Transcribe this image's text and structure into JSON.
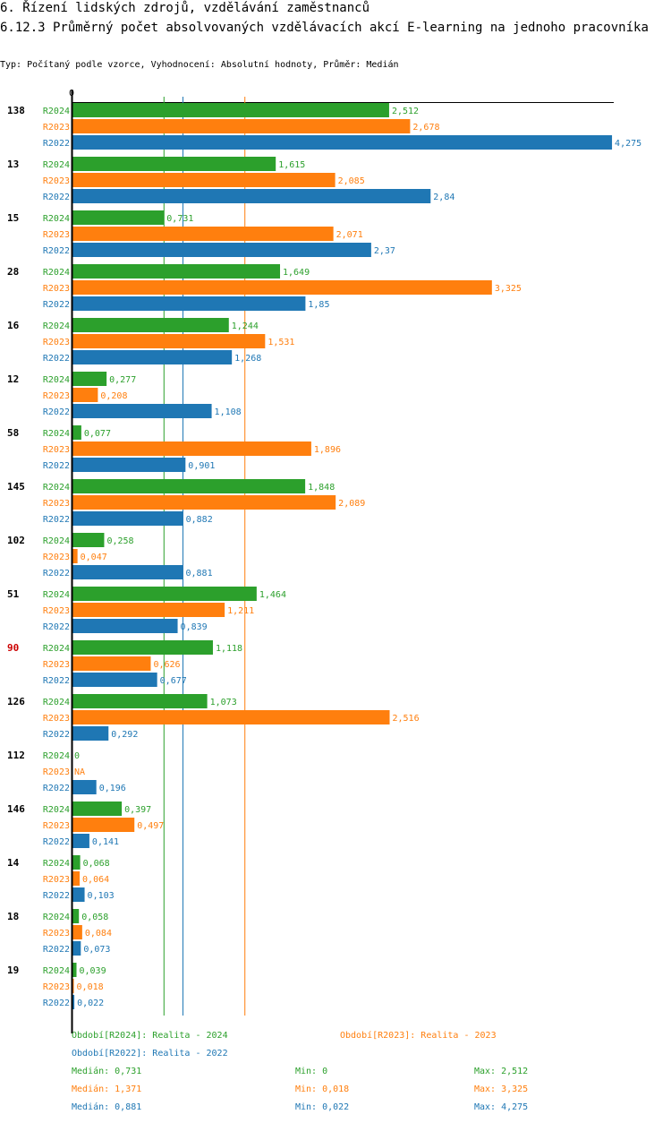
{
  "header": {
    "title": "6. Řízení lidských zdrojů, vzdělávání zaměstnanců",
    "subtitle": "6.12.3 Průměrný počet absolvovaných vzdělávacích akcí E-learning na jednoho pracovníka",
    "info": "Typ: Počítaný podle vzorce, Vyhodnocení: Absolutní hodnoty, Průměr: Medián"
  },
  "colors": {
    "R2024": "#2ca02c",
    "R2023": "#ff7f0e",
    "R2022": "#1f77b4",
    "highlight": "#cc0000",
    "axis": "#000000"
  },
  "chart_data": {
    "type": "bar",
    "orientation": "horizontal",
    "axis_zero_label": "0",
    "xlim": [
      0,
      4.275
    ],
    "series_names": [
      "R2024",
      "R2023",
      "R2022"
    ],
    "highlight_category": "90",
    "categories": [
      {
        "id": "138",
        "R2024": 2.512,
        "R2023": 2.678,
        "R2022": 4.275,
        "labels": [
          "2,512",
          "2,678",
          "4,275"
        ]
      },
      {
        "id": "13",
        "R2024": 1.615,
        "R2023": 2.085,
        "R2022": 2.84,
        "labels": [
          "1,615",
          "2,085",
          "2,84"
        ]
      },
      {
        "id": "15",
        "R2024": 0.731,
        "R2023": 2.071,
        "R2022": 2.37,
        "labels": [
          "0,731",
          "2,071",
          "2,37"
        ]
      },
      {
        "id": "28",
        "R2024": 1.649,
        "R2023": 3.325,
        "R2022": 1.85,
        "labels": [
          "1,649",
          "3,325",
          "1,85"
        ]
      },
      {
        "id": "16",
        "R2024": 1.244,
        "R2023": 1.531,
        "R2022": 1.268,
        "labels": [
          "1,244",
          "1,531",
          "1,268"
        ]
      },
      {
        "id": "12",
        "R2024": 0.277,
        "R2023": 0.208,
        "R2022": 1.108,
        "labels": [
          "0,277",
          "0,208",
          "1,108"
        ]
      },
      {
        "id": "58",
        "R2024": 0.077,
        "R2023": 1.896,
        "R2022": 0.901,
        "labels": [
          "0,077",
          "1,896",
          "0,901"
        ]
      },
      {
        "id": "145",
        "R2024": 1.848,
        "R2023": 2.089,
        "R2022": 0.882,
        "labels": [
          "1,848",
          "2,089",
          "0,882"
        ]
      },
      {
        "id": "102",
        "R2024": 0.258,
        "R2023": 0.047,
        "R2022": 0.881,
        "labels": [
          "0,258",
          "0,047",
          "0,881"
        ]
      },
      {
        "id": "51",
        "R2024": 1.464,
        "R2023": 1.211,
        "R2022": 0.839,
        "labels": [
          "1,464",
          "1,211",
          "0,839"
        ]
      },
      {
        "id": "90",
        "R2024": 1.118,
        "R2023": 0.626,
        "R2022": 0.677,
        "labels": [
          "1,118",
          "0,626",
          "0,677"
        ]
      },
      {
        "id": "126",
        "R2024": 1.073,
        "R2023": 2.516,
        "R2022": 0.292,
        "labels": [
          "1,073",
          "2,516",
          "0,292"
        ]
      },
      {
        "id": "112",
        "R2024": 0,
        "R2023": null,
        "R2022": 0.196,
        "labels": [
          "0",
          "NA",
          "0,196"
        ]
      },
      {
        "id": "146",
        "R2024": 0.397,
        "R2023": 0.497,
        "R2022": 0.141,
        "labels": [
          "0,397",
          "0,497",
          "0,141"
        ]
      },
      {
        "id": "14",
        "R2024": 0.068,
        "R2023": 0.064,
        "R2022": 0.103,
        "labels": [
          "0,068",
          "0,064",
          "0,103"
        ]
      },
      {
        "id": "18",
        "R2024": 0.058,
        "R2023": 0.084,
        "R2022": 0.073,
        "labels": [
          "0,058",
          "0,084",
          "0,073"
        ]
      },
      {
        "id": "19",
        "R2024": 0.039,
        "R2023": 0.018,
        "R2022": 0.022,
        "labels": [
          "0,039",
          "0,018",
          "0,022"
        ]
      }
    ],
    "median_lines": {
      "R2024": 0.731,
      "R2023": 1.371,
      "R2022": 0.881
    }
  },
  "legend": {
    "period_2024": "Období[R2024]: Realita - 2024",
    "period_2023": "Období[R2023]: Realita - 2023",
    "period_2022": "Období[R2022]: Realita - 2022",
    "stats": {
      "R2024": {
        "median": "Medián: 0,731",
        "min": "Min: 0",
        "max": "Max: 2,512"
      },
      "R2023": {
        "median": "Medián: 1,371",
        "min": "Min: 0,018",
        "max": "Max: 3,325"
      },
      "R2022": {
        "median": "Medián: 0,881",
        "min": "Min: 0,022",
        "max": "Max: 4,275"
      }
    }
  }
}
